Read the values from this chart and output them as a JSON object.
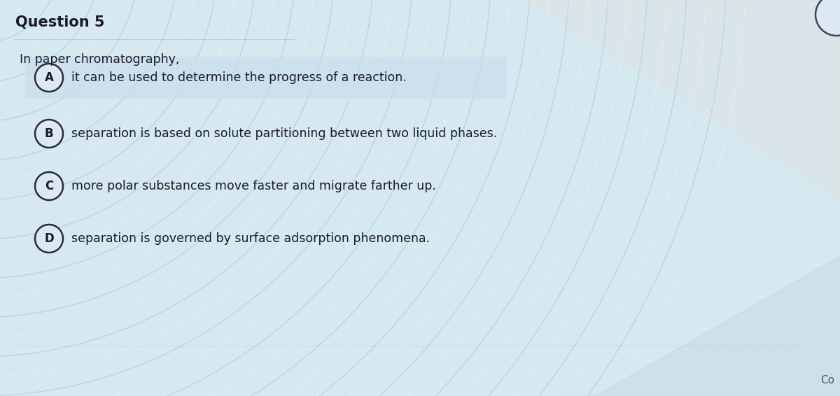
{
  "title": "Question 5",
  "question": "In paper chromatography,",
  "options": [
    {
      "label": "A",
      "text": "it can be used to determine the progress of a reaction.",
      "highlighted": true
    },
    {
      "label": "B",
      "text": "separation is based on solute partitioning between two liquid phases.",
      "highlighted": false
    },
    {
      "label": "C",
      "text": "more polar substances move faster and migrate farther up.",
      "highlighted": false
    },
    {
      "label": "D",
      "text": "separation is governed by surface adsorption phenomena.",
      "highlighted": false
    }
  ],
  "bg_color": "#d6e8f0",
  "title_fontsize": 15,
  "question_fontsize": 12.5,
  "option_fontsize": 12.5,
  "title_color": "#1a1a2e",
  "question_color": "#1a1a2e",
  "option_text_color": "#1a1a2e",
  "circle_edge_color": "#2a2a3a",
  "circle_face_color": "#dce8f2",
  "highlight_box_color": "#c8dcee",
  "watermark_color_blue": "#a8c8e0",
  "watermark_color_white": "#e8f2f8",
  "bottom_line_color": "#b0bec8",
  "co_text": "Co",
  "right_cream_color": "#e8dcc8",
  "right_blue_color": "#b8ccd8"
}
